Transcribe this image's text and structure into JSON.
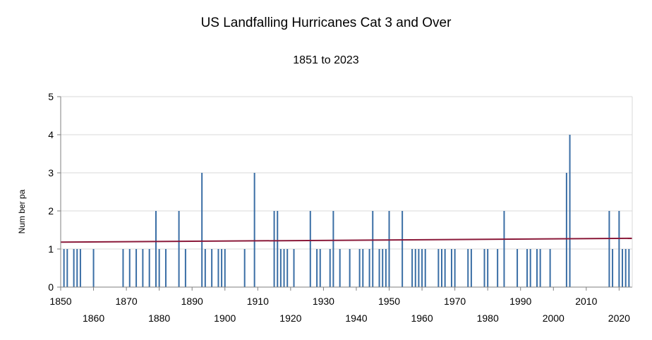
{
  "chart_data": {
    "type": "bar",
    "title": "US Landfalling Hurricanes Cat 3 and Over",
    "subtitle": "1851 to 2023",
    "xlabel": "",
    "ylabel": "Num ber pa",
    "xlim": [
      1850,
      2024
    ],
    "ylim": [
      0,
      5
    ],
    "y_ticks": [
      0,
      1,
      2,
      3,
      4,
      5
    ],
    "x_ticks": [
      1850,
      1860,
      1870,
      1880,
      1890,
      1900,
      1910,
      1920,
      1930,
      1940,
      1950,
      1960,
      1970,
      1980,
      1990,
      2000,
      2010,
      2020
    ],
    "grid": "horizontal",
    "colors": {
      "bars": "#3a6ea5",
      "trend": "#8b1a3a",
      "grid": "#d9d9d9",
      "axis": "#7f7f7f"
    },
    "series": [
      {
        "values": [
          [
            1851,
            1
          ],
          [
            1852,
            1
          ],
          [
            1854,
            1
          ],
          [
            1855,
            1
          ],
          [
            1856,
            1
          ],
          [
            1860,
            1
          ],
          [
            1869,
            1
          ],
          [
            1871,
            1
          ],
          [
            1873,
            1
          ],
          [
            1875,
            1
          ],
          [
            1877,
            1
          ],
          [
            1879,
            2
          ],
          [
            1880,
            1
          ],
          [
            1882,
            1
          ],
          [
            1886,
            2
          ],
          [
            1888,
            1
          ],
          [
            1893,
            3
          ],
          [
            1894,
            1
          ],
          [
            1896,
            1
          ],
          [
            1898,
            1
          ],
          [
            1899,
            1
          ],
          [
            1900,
            1
          ],
          [
            1906,
            1
          ],
          [
            1909,
            3
          ],
          [
            1915,
            2
          ],
          [
            1916,
            2
          ],
          [
            1917,
            1
          ],
          [
            1918,
            1
          ],
          [
            1919,
            1
          ],
          [
            1921,
            1
          ],
          [
            1926,
            2
          ],
          [
            1928,
            1
          ],
          [
            1929,
            1
          ],
          [
            1932,
            1
          ],
          [
            1933,
            2
          ],
          [
            1935,
            1
          ],
          [
            1938,
            1
          ],
          [
            1941,
            1
          ],
          [
            1942,
            1
          ],
          [
            1944,
            1
          ],
          [
            1945,
            2
          ],
          [
            1947,
            1
          ],
          [
            1948,
            1
          ],
          [
            1949,
            1
          ],
          [
            1950,
            2
          ],
          [
            1954,
            2
          ],
          [
            1957,
            1
          ],
          [
            1958,
            1
          ],
          [
            1959,
            1
          ],
          [
            1960,
            1
          ],
          [
            1961,
            1
          ],
          [
            1965,
            1
          ],
          [
            1966,
            1
          ],
          [
            1967,
            1
          ],
          [
            1969,
            1
          ],
          [
            1970,
            1
          ],
          [
            1974,
            1
          ],
          [
            1975,
            1
          ],
          [
            1979,
            1
          ],
          [
            1980,
            1
          ],
          [
            1983,
            1
          ],
          [
            1985,
            2
          ],
          [
            1989,
            1
          ],
          [
            1992,
            1
          ],
          [
            1993,
            1
          ],
          [
            1995,
            1
          ],
          [
            1996,
            1
          ],
          [
            1999,
            1
          ],
          [
            2004,
            3
          ],
          [
            2005,
            4
          ],
          [
            2017,
            2
          ],
          [
            2018,
            1
          ],
          [
            2020,
            2
          ],
          [
            2021,
            1
          ],
          [
            2022,
            1
          ],
          [
            2023,
            1
          ]
        ]
      },
      {
        "type": "line",
        "values": [
          [
            1850,
            1.18
          ],
          [
            2024,
            1.28
          ]
        ]
      }
    ]
  }
}
